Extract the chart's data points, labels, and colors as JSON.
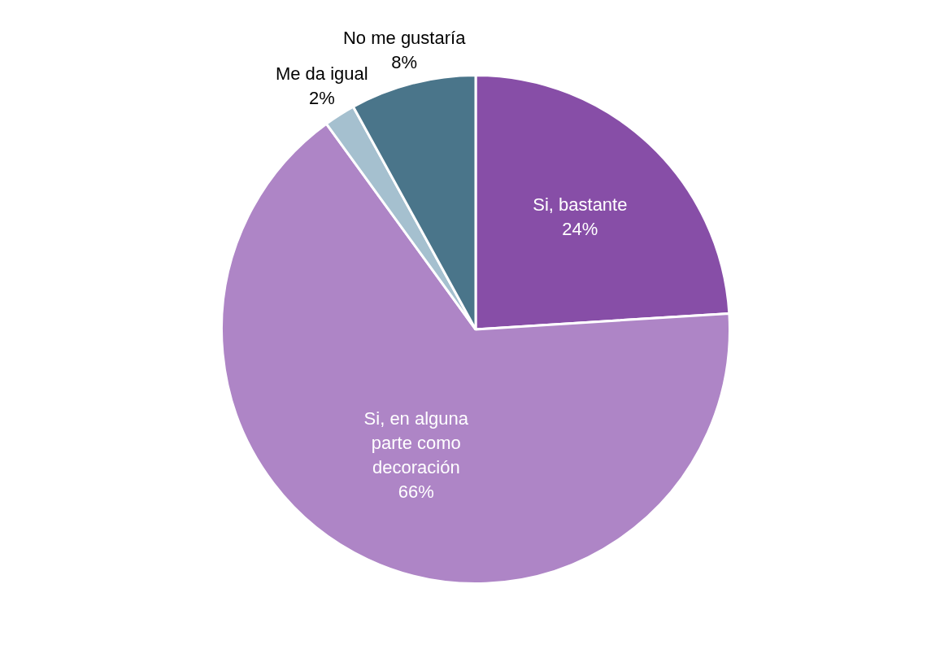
{
  "chart_data": {
    "type": "pie",
    "categories": [
      "Si, bastante",
      "Si, en alguna parte como decoración",
      "Me da igual",
      "No me gustaría"
    ],
    "values": [
      24,
      66,
      2,
      8
    ],
    "colors": [
      "#874ea7",
      "#ae85c6",
      "#a5c0cf",
      "#4a758a"
    ],
    "value_labels": [
      "24%",
      "66%",
      "2%",
      "8%"
    ],
    "legend": false
  }
}
